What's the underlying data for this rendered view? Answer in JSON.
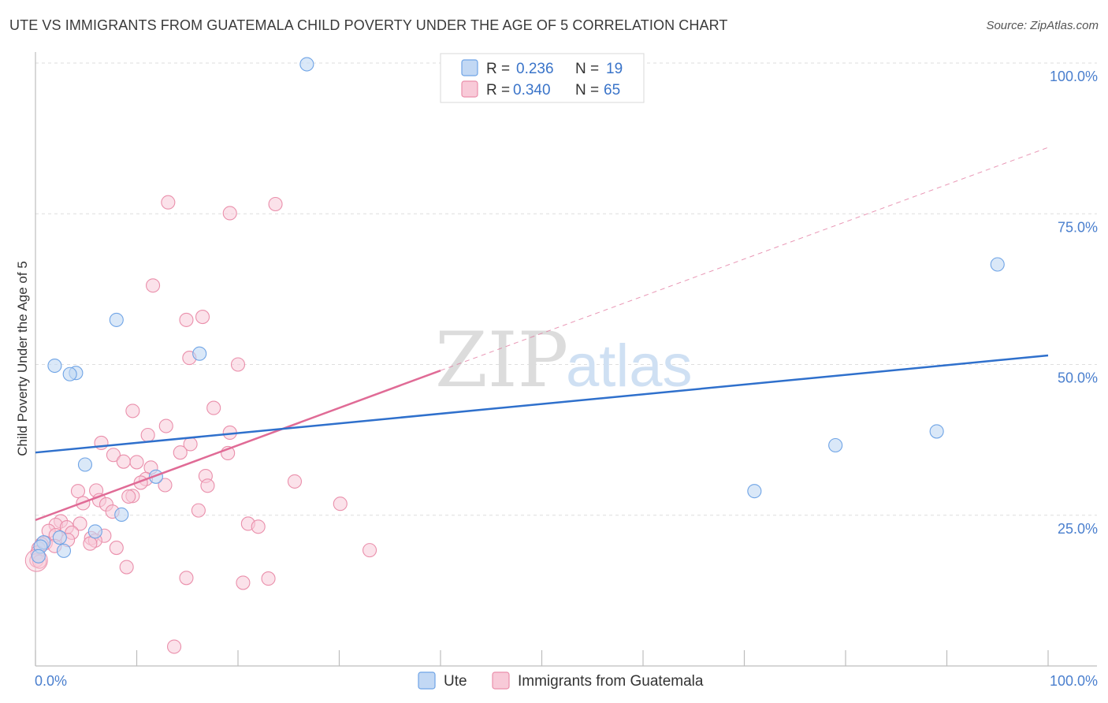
{
  "title": "UTE VS IMMIGRANTS FROM GUATEMALA CHILD POVERTY UNDER THE AGE OF 5 CORRELATION CHART",
  "source": "Source: ZipAtlas.com",
  "watermark": {
    "zip": "ZIP",
    "atlas": "atlas"
  },
  "colors": {
    "ute": "#6fa4e6",
    "ute_fill": "#c2d8f4",
    "ute_line": "#2f70cc",
    "guatemala": "#ea8fab",
    "guatemala_fill": "#f8cad8",
    "guatemala_line": "#e06b96",
    "grid": "#dedede",
    "tick_label": "#4a7fce"
  },
  "legend_box": {
    "rows": [
      {
        "r_label": "R = ",
        "r_value": "0.236",
        "n_label": "N = ",
        "n_value": "19",
        "series": "ute"
      },
      {
        "r_label": "R = ",
        "r_value": "0.340",
        "n_label": "N = ",
        "n_value": "65",
        "series": "guatemala"
      }
    ]
  },
  "bottom_legend": {
    "ute": "Ute",
    "guatemala": "Immigrants from Guatemala"
  },
  "chart_data": {
    "type": "scatter",
    "title": "UTE VS IMMIGRANTS FROM GUATEMALA CHILD POVERTY UNDER THE AGE OF 5 CORRELATION CHART",
    "xlabel": "",
    "ylabel": "Child Poverty Under the Age of 5",
    "xlim": [
      0,
      100
    ],
    "ylim": [
      0,
      100
    ],
    "x_tick_labels": [
      "0.0%",
      "100.0%"
    ],
    "y_ticks": [
      25,
      50,
      75,
      100
    ],
    "y_tick_labels": [
      "25.0%",
      "50.0%",
      "75.0%",
      "100.0%"
    ],
    "grid": true,
    "legend_placement": "top-center",
    "series": [
      {
        "name": "Ute",
        "color": "#6fa4e6",
        "points": [
          [
            26.8,
            99.8
          ],
          [
            8.0,
            57.4
          ],
          [
            1.9,
            49.8
          ],
          [
            4.0,
            48.6
          ],
          [
            3.4,
            48.4
          ],
          [
            16.2,
            51.8
          ],
          [
            4.9,
            33.4
          ],
          [
            11.9,
            31.4
          ],
          [
            8.5,
            25.1
          ],
          [
            5.9,
            22.3
          ],
          [
            2.4,
            21.3
          ],
          [
            0.8,
            20.5
          ],
          [
            0.5,
            19.8
          ],
          [
            2.8,
            19.1
          ],
          [
            0.3,
            18.2
          ],
          [
            71.0,
            29.0
          ],
          [
            79.0,
            36.6
          ],
          [
            89.0,
            38.9
          ],
          [
            95.0,
            66.6
          ]
        ],
        "trend": {
          "x0": 0,
          "y0": 35.4,
          "x1": 100,
          "y1": 51.5,
          "style": "solid"
        }
      },
      {
        "name": "Immigrants from Guatemala",
        "color": "#ea8fab",
        "points": [
          [
            13.1,
            76.9
          ],
          [
            19.2,
            75.1
          ],
          [
            23.7,
            76.6
          ],
          [
            11.6,
            63.1
          ],
          [
            14.9,
            57.4
          ],
          [
            16.5,
            57.9
          ],
          [
            15.2,
            51.1
          ],
          [
            20.0,
            50.0
          ],
          [
            17.6,
            42.8
          ],
          [
            9.6,
            42.3
          ],
          [
            12.9,
            39.8
          ],
          [
            11.1,
            38.3
          ],
          [
            19.2,
            38.7
          ],
          [
            6.5,
            37.0
          ],
          [
            15.3,
            36.8
          ],
          [
            14.3,
            35.4
          ],
          [
            19.0,
            35.3
          ],
          [
            7.7,
            35.0
          ],
          [
            8.7,
            33.9
          ],
          [
            10.0,
            33.8
          ],
          [
            11.4,
            32.9
          ],
          [
            16.8,
            31.5
          ],
          [
            10.9,
            31.0
          ],
          [
            10.4,
            30.4
          ],
          [
            25.6,
            30.6
          ],
          [
            12.8,
            30.0
          ],
          [
            17.0,
            29.9
          ],
          [
            4.2,
            29.0
          ],
          [
            6.0,
            29.1
          ],
          [
            9.6,
            28.2
          ],
          [
            9.2,
            28.1
          ],
          [
            6.3,
            27.5
          ],
          [
            7.0,
            26.8
          ],
          [
            4.7,
            27.0
          ],
          [
            30.1,
            26.9
          ],
          [
            7.6,
            25.6
          ],
          [
            16.1,
            25.8
          ],
          [
            2.5,
            24.0
          ],
          [
            4.4,
            23.6
          ],
          [
            2.0,
            23.4
          ],
          [
            21.0,
            23.6
          ],
          [
            22.0,
            23.1
          ],
          [
            3.1,
            23.0
          ],
          [
            1.3,
            22.4
          ],
          [
            2.0,
            21.7
          ],
          [
            3.6,
            22.1
          ],
          [
            6.8,
            21.6
          ],
          [
            5.5,
            21.2
          ],
          [
            5.9,
            20.8
          ],
          [
            3.2,
            20.9
          ],
          [
            1.0,
            20.4
          ],
          [
            5.4,
            20.3
          ],
          [
            0.6,
            20.2
          ],
          [
            1.9,
            19.9
          ],
          [
            8.0,
            19.6
          ],
          [
            0.3,
            19.5
          ],
          [
            33.0,
            19.2
          ],
          [
            0.2,
            18.8
          ],
          [
            0.1,
            17.5
          ],
          [
            0.4,
            17.3
          ],
          [
            9.0,
            16.4
          ],
          [
            14.9,
            14.6
          ],
          [
            20.5,
            13.8
          ],
          [
            23.0,
            14.5
          ],
          [
            13.7,
            3.2
          ]
        ],
        "trend": {
          "x0": 0,
          "y0": 24.2,
          "x1": 40,
          "y1": 49.0,
          "style": "solid",
          "extension": {
            "x1": 100,
            "y1": 86.0,
            "style": "dashed"
          }
        }
      }
    ]
  }
}
